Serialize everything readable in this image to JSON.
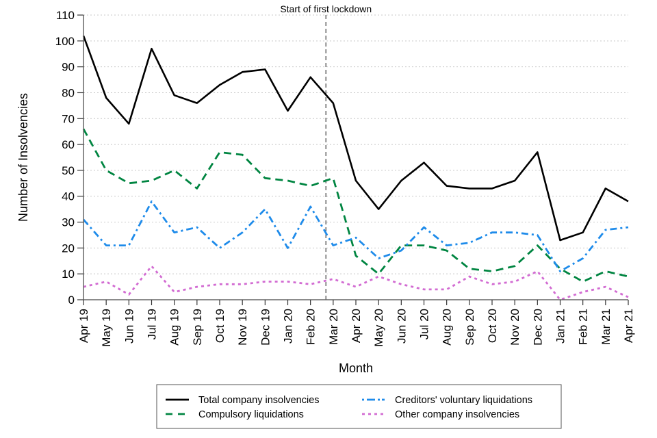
{
  "chart_data": {
    "type": "line",
    "title": "",
    "xlabel": "Month",
    "ylabel": "Number of Insolvencies",
    "ylim": [
      0,
      110
    ],
    "yticks": [
      0,
      10,
      20,
      30,
      40,
      50,
      60,
      70,
      80,
      90,
      100,
      110
    ],
    "grid": "horizontal dotted",
    "categories": [
      "Apr 19",
      "May 19",
      "Jun 19",
      "Jul 19",
      "Aug 19",
      "Sep 19",
      "Oct 19",
      "Nov 19",
      "Dec 19",
      "Jan 20",
      "Feb 20",
      "Mar 20",
      "Apr 20",
      "May 20",
      "Jun 20",
      "Jul 20",
      "Aug 20",
      "Sep 20",
      "Oct 20",
      "Nov 20",
      "Dec 20",
      "Jan 21",
      "Feb 21",
      "Mar 21",
      "Apr 21"
    ],
    "series": [
      {
        "name": "Total company insolvencies",
        "color": "#000000",
        "dash": "solid",
        "values": [
          102,
          78,
          68,
          97,
          79,
          76,
          83,
          88,
          89,
          73,
          86,
          76,
          46,
          35,
          46,
          53,
          44,
          43,
          43,
          46,
          57,
          23,
          26,
          43,
          38
        ]
      },
      {
        "name": "Compulsory liquidations",
        "color": "#008541",
        "dash": "dashed",
        "values": [
          66,
          50,
          45,
          46,
          50,
          43,
          57,
          56,
          47,
          46,
          44,
          47,
          17,
          10,
          21,
          21,
          19,
          12,
          11,
          13,
          21,
          12,
          7,
          11,
          9
        ]
      },
      {
        "name": "Creditors' voluntary liquidations",
        "color": "#1e8bea",
        "dash": "dash-dot",
        "values": [
          31,
          21,
          21,
          38,
          26,
          28,
          20,
          26,
          35,
          20,
          36,
          21,
          24,
          16,
          19,
          28,
          21,
          22,
          26,
          26,
          25,
          11,
          16,
          27,
          28
        ]
      },
      {
        "name": "Other company insolvencies",
        "color": "#d26bd2",
        "dash": "dotted",
        "values": [
          5,
          7,
          2,
          13,
          3,
          5,
          6,
          6,
          7,
          7,
          6,
          8,
          5,
          9,
          6,
          4,
          4,
          9,
          6,
          7,
          11,
          0,
          3,
          5,
          1
        ]
      }
    ],
    "annotations": [
      {
        "text": "Start of first lockdown",
        "x_between": [
          "Feb 20",
          "Mar 20"
        ],
        "style": "vertical dashed line"
      }
    ],
    "legend": {
      "placement": "bottom-center",
      "columns": 2
    }
  }
}
